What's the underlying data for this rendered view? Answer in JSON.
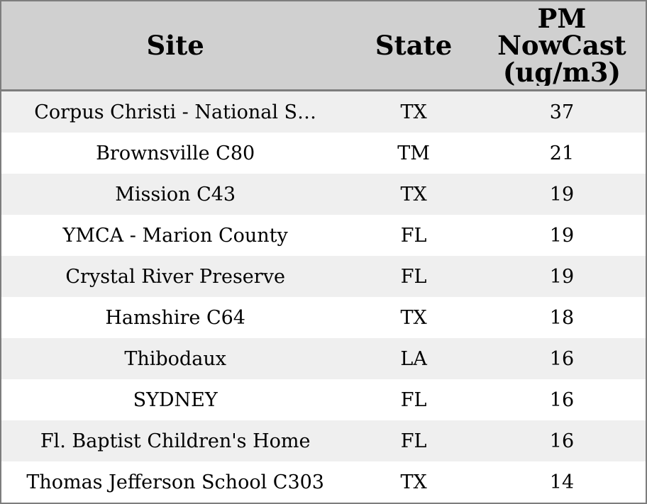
{
  "header": {
    "columns": [
      "Site",
      "State",
      "PM NowCast (ug/m3)"
    ]
  },
  "rows": [
    {
      "site": "Corpus Christi - National S…",
      "state": "TX",
      "pm_nowcast": "37"
    },
    {
      "site": "Brownsville C80",
      "state": "TM",
      "pm_nowcast": "21"
    },
    {
      "site": "Mission C43",
      "state": "TX",
      "pm_nowcast": "19"
    },
    {
      "site": "YMCA - Marion County",
      "state": "FL",
      "pm_nowcast": "19"
    },
    {
      "site": "Crystal River Preserve",
      "state": "FL",
      "pm_nowcast": "19"
    },
    {
      "site": "Hamshire C64",
      "state": "TX",
      "pm_nowcast": "18"
    },
    {
      "site": "Thibodaux",
      "state": "LA",
      "pm_nowcast": "16"
    },
    {
      "site": "SYDNEY",
      "state": "FL",
      "pm_nowcast": "16"
    },
    {
      "site": "Fl. Baptist Children's Home",
      "state": "FL",
      "pm_nowcast": "16"
    },
    {
      "site": "Thomas Jefferson School C303",
      "state": "TX",
      "pm_nowcast": "14"
    }
  ],
  "colors": {
    "header_bg": "#d0d0d0",
    "row_stripe_bg": "#efefef",
    "row_bg": "#ffffff",
    "border": "#7d7d7d",
    "text": "#000000"
  }
}
